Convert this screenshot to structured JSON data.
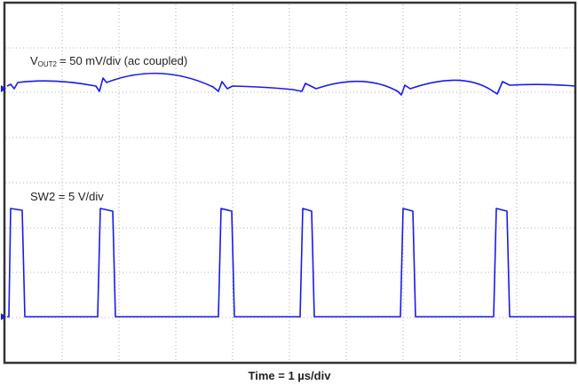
{
  "annotations": [
    {
      "main": "V",
      "subscript": "OUT2",
      "rest": "= 50 mV/div (ac coupled)"
    },
    {
      "main": "SW2 = 5 V/div"
    }
  ],
  "xlabel": "Time = 1 µs/div"
}
